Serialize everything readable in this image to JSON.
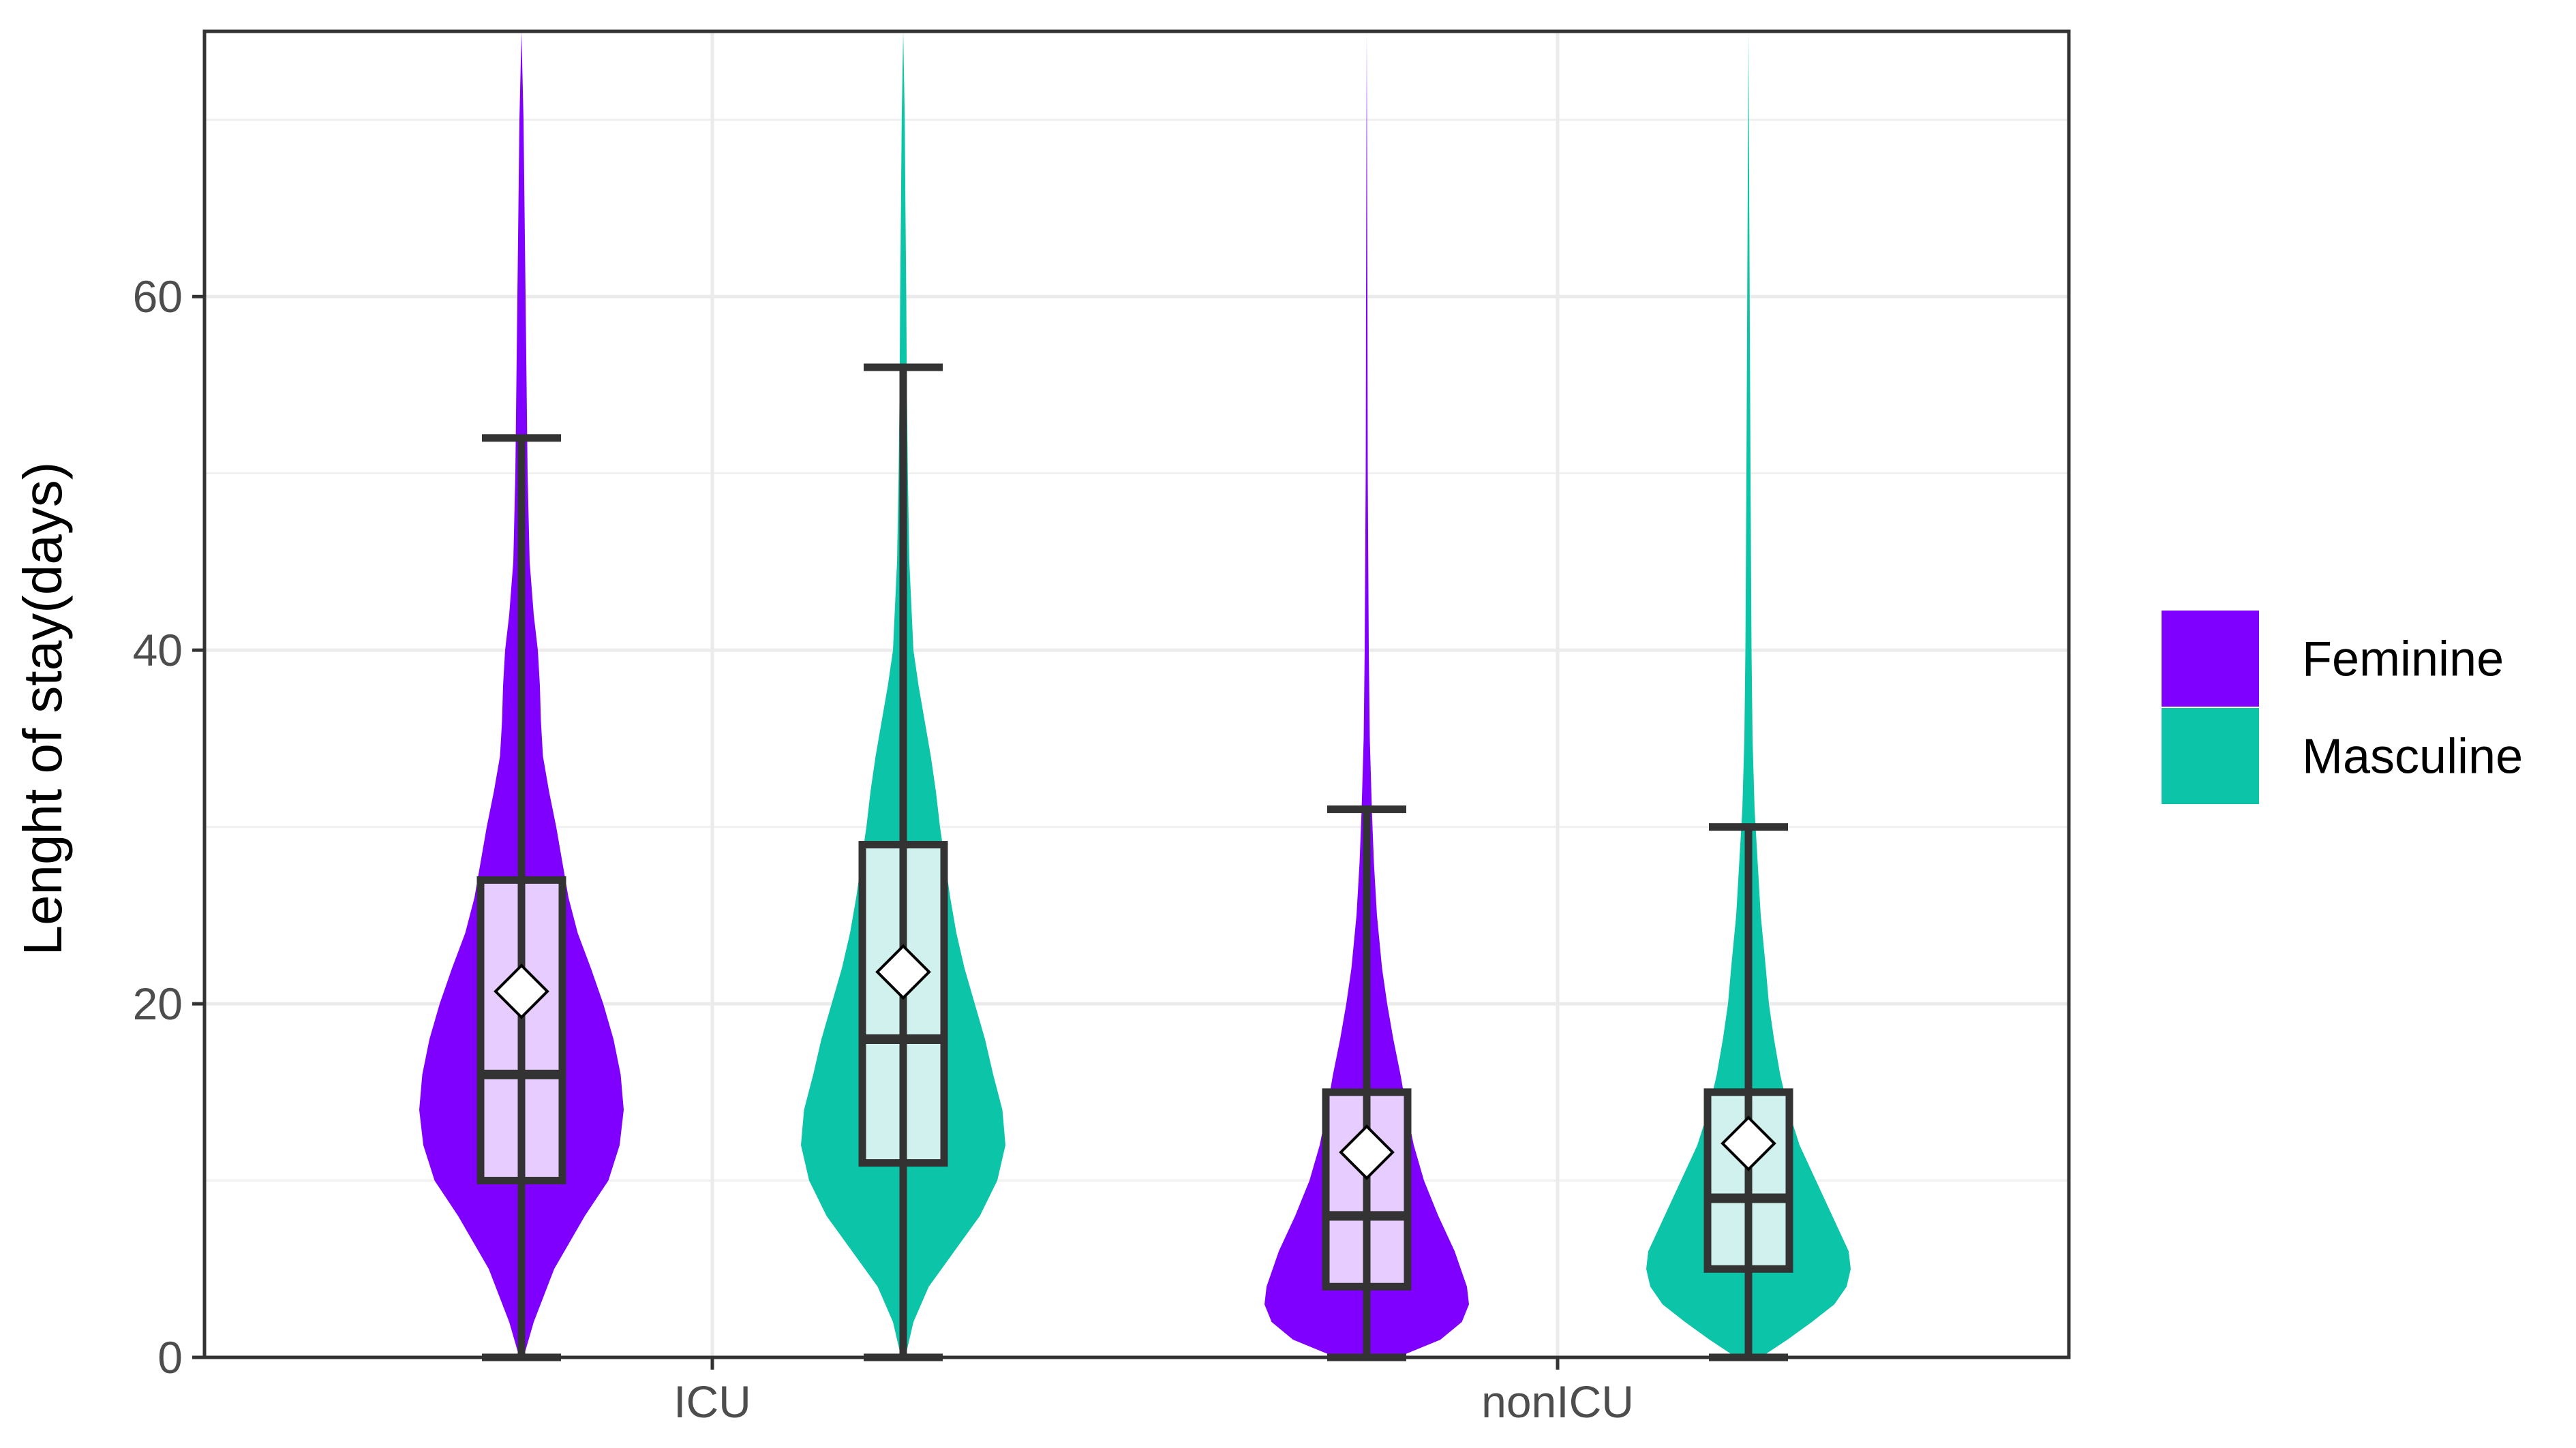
{
  "chart_data": {
    "type": "violin",
    "xlabel": "",
    "ylabel": "Lenght of stay(days)",
    "ylim": [
      0,
      75
    ],
    "yticks": [
      0,
      20,
      40,
      60
    ],
    "categories": [
      "ICU",
      "nonICU"
    ],
    "grid": true,
    "legend_position": "right",
    "series": [
      {
        "name": "Feminine",
        "color": "#8000FF",
        "box_fill": "#E6CCFF",
        "groups": [
          {
            "category": "ICU",
            "whisker_low": 0,
            "q1": 10,
            "median": 16,
            "q3": 27,
            "whisker_high": 52,
            "mean": 20.7,
            "max": 75,
            "density": [
              [
                0,
                0.02
              ],
              [
                2,
                0.12
              ],
              [
                5,
                0.32
              ],
              [
                8,
                0.62
              ],
              [
                10,
                0.85
              ],
              [
                12,
                0.96
              ],
              [
                14,
                1.0
              ],
              [
                16,
                0.97
              ],
              [
                18,
                0.9
              ],
              [
                20,
                0.8
              ],
              [
                22,
                0.68
              ],
              [
                24,
                0.55
              ],
              [
                26,
                0.46
              ],
              [
                28,
                0.4
              ],
              [
                30,
                0.34
              ],
              [
                32,
                0.27
              ],
              [
                34,
                0.21
              ],
              [
                36,
                0.19
              ],
              [
                38,
                0.18
              ],
              [
                40,
                0.16
              ],
              [
                42,
                0.12
              ],
              [
                45,
                0.08
              ],
              [
                50,
                0.06
              ],
              [
                55,
                0.05
              ],
              [
                60,
                0.04
              ],
              [
                65,
                0.03
              ],
              [
                70,
                0.02
              ],
              [
                75,
                0.0
              ]
            ]
          },
          {
            "category": "nonICU",
            "whisker_low": 0,
            "q1": 4,
            "median": 8,
            "q3": 15,
            "whisker_high": 31,
            "mean": 11.6,
            "max": 75,
            "density": [
              [
                0,
                0.3
              ],
              [
                1,
                0.72
              ],
              [
                2,
                0.93
              ],
              [
                3,
                1.0
              ],
              [
                4,
                0.98
              ],
              [
                6,
                0.86
              ],
              [
                8,
                0.7
              ],
              [
                10,
                0.56
              ],
              [
                12,
                0.46
              ],
              [
                14,
                0.39
              ],
              [
                16,
                0.33
              ],
              [
                18,
                0.26
              ],
              [
                20,
                0.2
              ],
              [
                22,
                0.15
              ],
              [
                25,
                0.1
              ],
              [
                28,
                0.07
              ],
              [
                31,
                0.05
              ],
              [
                35,
                0.03
              ],
              [
                40,
                0.02
              ],
              [
                50,
                0.01
              ],
              [
                60,
                0.007
              ],
              [
                75,
                0.0
              ]
            ]
          }
        ]
      },
      {
        "name": "Masculine",
        "color": "#0CC4A8",
        "box_fill": "#D0F1EE",
        "groups": [
          {
            "category": "ICU",
            "whisker_low": 0,
            "q1": 11,
            "median": 18,
            "q3": 29,
            "whisker_high": 56,
            "mean": 21.8,
            "max": 75,
            "density": [
              [
                0,
                0.02
              ],
              [
                2,
                0.1
              ],
              [
                4,
                0.25
              ],
              [
                6,
                0.5
              ],
              [
                8,
                0.75
              ],
              [
                10,
                0.92
              ],
              [
                12,
                1.0
              ],
              [
                14,
                0.97
              ],
              [
                16,
                0.88
              ],
              [
                18,
                0.8
              ],
              [
                20,
                0.7
              ],
              [
                22,
                0.6
              ],
              [
                24,
                0.52
              ],
              [
                26,
                0.46
              ],
              [
                28,
                0.41
              ],
              [
                30,
                0.36
              ],
              [
                32,
                0.32
              ],
              [
                34,
                0.27
              ],
              [
                36,
                0.21
              ],
              [
                38,
                0.15
              ],
              [
                40,
                0.1
              ],
              [
                45,
                0.06
              ],
              [
                50,
                0.045
              ],
              [
                55,
                0.035
              ],
              [
                60,
                0.03
              ],
              [
                65,
                0.022
              ],
              [
                70,
                0.015
              ],
              [
                75,
                0.0
              ]
            ]
          },
          {
            "category": "nonICU",
            "whisker_low": 0,
            "q1": 5,
            "median": 9,
            "q3": 15,
            "whisker_high": 30,
            "mean": 12.1,
            "max": 75,
            "density": [
              [
                0,
                0.12
              ],
              [
                1,
                0.38
              ],
              [
                2,
                0.62
              ],
              [
                3,
                0.84
              ],
              [
                4,
                0.96
              ],
              [
                5,
                1.0
              ],
              [
                6,
                0.98
              ],
              [
                7,
                0.9
              ],
              [
                8,
                0.82
              ],
              [
                10,
                0.66
              ],
              [
                12,
                0.5
              ],
              [
                14,
                0.39
              ],
              [
                16,
                0.31
              ],
              [
                18,
                0.25
              ],
              [
                20,
                0.2
              ],
              [
                22,
                0.17
              ],
              [
                25,
                0.12
              ],
              [
                28,
                0.09
              ],
              [
                31,
                0.06
              ],
              [
                35,
                0.04
              ],
              [
                40,
                0.03
              ],
              [
                50,
                0.02
              ],
              [
                60,
                0.012
              ],
              [
                75,
                0.0
              ]
            ]
          }
        ]
      }
    ]
  }
}
